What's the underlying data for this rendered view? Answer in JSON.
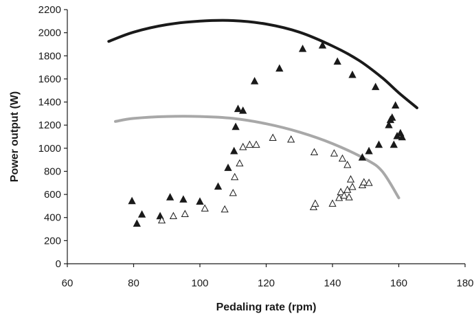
{
  "chart_data": {
    "type": "scatter",
    "title": "",
    "xlabel": "Pedaling rate (rpm)",
    "ylabel": "Power output (W)",
    "xlim": [
      60,
      180
    ],
    "ylim": [
      0,
      2200
    ],
    "xticks": [
      60,
      80,
      100,
      120,
      140,
      160,
      180
    ],
    "yticks": [
      0,
      200,
      400,
      600,
      800,
      1000,
      1200,
      1400,
      1600,
      1800,
      2000,
      2200
    ],
    "grid": false,
    "legend": "none",
    "series": [
      {
        "kind": "line",
        "color": "#1a1a1a",
        "points": [
          [
            72.5,
            1925
          ],
          [
            80,
            2005
          ],
          [
            90,
            2070
          ],
          [
            100,
            2100
          ],
          [
            110,
            2105
          ],
          [
            120,
            2075
          ],
          [
            130,
            2005
          ],
          [
            140,
            1885
          ],
          [
            148,
            1760
          ],
          [
            155,
            1610
          ],
          [
            160,
            1480
          ],
          [
            165.5,
            1350
          ]
        ]
      },
      {
        "kind": "line",
        "color": "#a8a8a8",
        "points": [
          [
            74.5,
            1232
          ],
          [
            80,
            1258
          ],
          [
            90,
            1275
          ],
          [
            100,
            1275
          ],
          [
            110,
            1258
          ],
          [
            120,
            1212
          ],
          [
            130,
            1140
          ],
          [
            140,
            1040
          ],
          [
            150,
            905
          ],
          [
            155,
            800
          ],
          [
            160,
            570
          ]
        ]
      },
      {
        "kind": "points",
        "marker": "filled-triangle",
        "color": "#1a1a1a",
        "points": [
          [
            79.5,
            542
          ],
          [
            81,
            347
          ],
          [
            82.5,
            426
          ],
          [
            88,
            412
          ],
          [
            91,
            575
          ],
          [
            95,
            556
          ],
          [
            100,
            538
          ],
          [
            105.5,
            668
          ],
          [
            108.5,
            830
          ],
          [
            110.3,
            975
          ],
          [
            110.8,
            1185
          ],
          [
            111.5,
            1340
          ],
          [
            113,
            1325
          ],
          [
            116.5,
            1580
          ],
          [
            124,
            1690
          ],
          [
            131,
            1860
          ],
          [
            137,
            1890
          ],
          [
            141.5,
            1750
          ],
          [
            146,
            1635
          ],
          [
            153,
            1530
          ],
          [
            149,
            920
          ],
          [
            151,
            975
          ],
          [
            154,
            1030
          ],
          [
            157,
            1200
          ],
          [
            157.5,
            1245
          ],
          [
            158,
            1265
          ],
          [
            158.5,
            1030
          ],
          [
            159,
            1370
          ],
          [
            159.5,
            1105
          ],
          [
            160.5,
            1130
          ],
          [
            161,
            1095
          ]
        ]
      },
      {
        "kind": "points",
        "marker": "open-triangle",
        "color": "#1a1a1a",
        "points": [
          [
            88.5,
            375
          ],
          [
            92,
            412
          ],
          [
            95.5,
            430
          ],
          [
            101.5,
            478
          ],
          [
            107.5,
            470
          ],
          [
            110,
            612
          ],
          [
            110.5,
            750
          ],
          [
            112,
            868
          ],
          [
            113,
            1010
          ],
          [
            115,
            1030
          ],
          [
            117,
            1030
          ],
          [
            122,
            1090
          ],
          [
            127.5,
            1075
          ],
          [
            134.5,
            965
          ],
          [
            134.3,
            490
          ],
          [
            134.8,
            520
          ],
          [
            140,
            520
          ],
          [
            140.5,
            955
          ],
          [
            142,
            570
          ],
          [
            142.5,
            620
          ],
          [
            143,
            910
          ],
          [
            143.5,
            590
          ],
          [
            144.5,
            640
          ],
          [
            145,
            575
          ],
          [
            145.5,
            730
          ],
          [
            146,
            665
          ],
          [
            144.5,
            855
          ],
          [
            149,
            680
          ],
          [
            149.5,
            705
          ],
          [
            151,
            700
          ]
        ]
      }
    ]
  }
}
